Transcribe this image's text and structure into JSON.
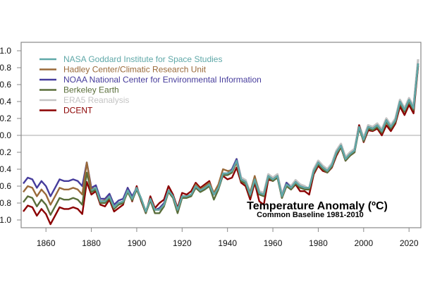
{
  "chart_data": {
    "type": "line",
    "title": "Temperature Anomaly (ºC)",
    "subtitle": "Common Baseline 1981-2010",
    "xlabel": "",
    "ylabel": "",
    "xlim": [
      1850,
      2025
    ],
    "ylim": [
      -1.1,
      1.1
    ],
    "x_step": 2,
    "xticks": [
      1860,
      1880,
      1900,
      1920,
      1940,
      1960,
      1980,
      2000,
      2020
    ],
    "yticks": [
      1.0,
      0.8,
      0.6,
      0.4,
      0.2,
      0.0,
      -0.2,
      -0.4,
      -0.6,
      -0.8,
      -1.0
    ],
    "ytick_labels": [
      "1.0",
      "0.8",
      "0.6",
      "0.4",
      "0.2",
      "0.0",
      "-0.2",
      "-0.4",
      "-0.6",
      "-0.8",
      "-1.0"
    ],
    "reference_line": 0.0,
    "grid": false,
    "legend_position": "top-left",
    "series": [
      {
        "name": "ERA5 Reanalysis",
        "color": "#c4c4c4",
        "x_start": 1940,
        "values": [
          -0.43,
          -0.4,
          -0.28,
          -0.5,
          -0.53,
          -0.68,
          -0.5,
          -0.66,
          -0.68,
          -0.46,
          -0.5,
          -0.46,
          -0.7,
          -0.56,
          -0.6,
          -0.53,
          -0.58,
          -0.6,
          -0.64,
          -0.4,
          -0.3,
          -0.36,
          -0.4,
          -0.33,
          -0.18,
          -0.1,
          -0.26,
          -0.2,
          -0.16,
          0.12,
          -0.03,
          0.12,
          0.1,
          0.14,
          0.07,
          0.2,
          0.12,
          0.2,
          0.42,
          0.32,
          0.44,
          0.34,
          0.9
        ]
      },
      {
        "name": "DCENT",
        "color": "#8b0000",
        "x_start": 1850,
        "values": [
          -0.9,
          -0.83,
          -0.85,
          -0.95,
          -0.87,
          -0.93,
          -1.05,
          -0.95,
          -0.85,
          -0.87,
          -0.87,
          -0.85,
          -0.87,
          -0.93,
          -0.55,
          -0.7,
          -0.66,
          -0.82,
          -0.84,
          -0.76,
          -0.9,
          -0.86,
          -0.82,
          -0.62,
          -0.78,
          -0.6,
          -0.78,
          -0.92,
          -0.72,
          -0.86,
          -0.8,
          -0.76,
          -0.6,
          -0.7,
          -0.86,
          -0.68,
          -0.7,
          -0.66,
          -0.56,
          -0.62,
          -0.58,
          -0.54,
          -0.7,
          -0.6,
          -0.48,
          -0.52,
          -0.5,
          -0.38,
          -0.56,
          -0.6,
          -0.76,
          -0.56,
          -0.78,
          -0.82,
          -0.52,
          -0.54,
          -0.48,
          -0.74,
          -0.6,
          -0.64,
          -0.58,
          -0.66,
          -0.66,
          -0.7,
          -0.46,
          -0.36,
          -0.42,
          -0.44,
          -0.38,
          -0.24,
          -0.14,
          -0.3,
          -0.24,
          -0.2,
          0.12,
          -0.08,
          0.06,
          0.05,
          0.08,
          0.0,
          0.12,
          0.05,
          0.14,
          0.34,
          0.24,
          0.36,
          0.26,
          0.82
        ]
      },
      {
        "name": "Berkeley Earth",
        "color": "#5a6e3a",
        "x_start": 1850,
        "values": [
          -0.79,
          -0.72,
          -0.74,
          -0.84,
          -0.76,
          -0.82,
          -0.94,
          -0.84,
          -0.74,
          -0.76,
          -0.76,
          -0.74,
          -0.76,
          -0.82,
          -0.44,
          -0.67,
          -0.64,
          -0.8,
          -0.8,
          -0.74,
          -0.87,
          -0.82,
          -0.8,
          -0.67,
          -0.77,
          -0.64,
          -0.77,
          -0.92,
          -0.77,
          -0.92,
          -0.92,
          -0.84,
          -0.67,
          -0.74,
          -0.92,
          -0.74,
          -0.74,
          -0.72,
          -0.62,
          -0.67,
          -0.64,
          -0.6,
          -0.76,
          -0.64,
          -0.47,
          -0.47,
          -0.44,
          -0.32,
          -0.54,
          -0.57,
          -0.72,
          -0.54,
          -0.7,
          -0.72,
          -0.5,
          -0.54,
          -0.5,
          -0.74,
          -0.6,
          -0.64,
          -0.57,
          -0.62,
          -0.64,
          -0.64,
          -0.44,
          -0.34,
          -0.4,
          -0.44,
          -0.37,
          -0.22,
          -0.14,
          -0.3,
          -0.24,
          -0.2,
          0.08,
          -0.07,
          0.08,
          0.06,
          0.1,
          0.03,
          0.16,
          0.08,
          0.16,
          0.38,
          0.28,
          0.4,
          0.3,
          0.83
        ]
      },
      {
        "name": "NOAA National Center for Environmental Information",
        "color": "#463c9c",
        "x_start": 1850,
        "values": [
          -0.57,
          -0.5,
          -0.52,
          -0.62,
          -0.54,
          -0.6,
          -0.72,
          -0.62,
          -0.52,
          -0.54,
          -0.54,
          -0.52,
          -0.54,
          -0.6,
          -0.32,
          -0.62,
          -0.59,
          -0.75,
          -0.75,
          -0.69,
          -0.82,
          -0.77,
          -0.75,
          -0.62,
          -0.72,
          -0.62,
          -0.75,
          -0.9,
          -0.75,
          -0.88,
          -0.86,
          -0.8,
          -0.65,
          -0.72,
          -0.88,
          -0.72,
          -0.72,
          -0.7,
          -0.6,
          -0.65,
          -0.62,
          -0.58,
          -0.7,
          -0.62,
          -0.45,
          -0.45,
          -0.4,
          -0.28,
          -0.52,
          -0.55,
          -0.7,
          -0.52,
          -0.68,
          -0.7,
          -0.48,
          -0.52,
          -0.48,
          -0.72,
          -0.56,
          -0.62,
          -0.55,
          -0.6,
          -0.62,
          -0.62,
          -0.42,
          -0.32,
          -0.38,
          -0.42,
          -0.35,
          -0.2,
          -0.12,
          -0.28,
          -0.22,
          -0.18,
          0.1,
          -0.05,
          0.1,
          0.08,
          0.12,
          0.05,
          0.18,
          0.1,
          0.18,
          0.4,
          0.3,
          0.42,
          0.32,
          0.85
        ]
      },
      {
        "name": "Hadley Center/Climatic Research Unit",
        "color": "#9a6a3a",
        "x_start": 1850,
        "values": [
          -0.67,
          -0.6,
          -0.62,
          -0.72,
          -0.64,
          -0.7,
          -0.82,
          -0.72,
          -0.62,
          -0.64,
          -0.64,
          -0.62,
          -0.64,
          -0.7,
          -0.32,
          -0.64,
          -0.62,
          -0.78,
          -0.77,
          -0.72,
          -0.85,
          -0.8,
          -0.78,
          -0.65,
          -0.75,
          -0.62,
          -0.75,
          -0.9,
          -0.75,
          -0.88,
          -0.88,
          -0.82,
          -0.65,
          -0.72,
          -0.88,
          -0.72,
          -0.72,
          -0.7,
          -0.58,
          -0.64,
          -0.6,
          -0.56,
          -0.68,
          -0.58,
          -0.4,
          -0.42,
          -0.42,
          -0.32,
          -0.52,
          -0.55,
          -0.68,
          -0.48,
          -0.68,
          -0.7,
          -0.48,
          -0.52,
          -0.48,
          -0.72,
          -0.58,
          -0.62,
          -0.55,
          -0.6,
          -0.62,
          -0.62,
          -0.42,
          -0.32,
          -0.38,
          -0.42,
          -0.35,
          -0.2,
          -0.12,
          -0.28,
          -0.22,
          -0.18,
          0.1,
          -0.05,
          0.1,
          0.08,
          0.12,
          0.05,
          0.18,
          0.1,
          0.18,
          0.4,
          0.3,
          0.42,
          0.32,
          0.85
        ]
      },
      {
        "name": "NASA Goddard Institute for Space Studies",
        "color": "#5fa8a8",
        "x_start": 1880,
        "values": [
          -0.65,
          -0.62,
          -0.78,
          -0.78,
          -0.72,
          -0.85,
          -0.8,
          -0.78,
          -0.65,
          -0.75,
          -0.62,
          -0.75,
          -0.9,
          -0.75,
          -0.88,
          -0.88,
          -0.82,
          -0.65,
          -0.72,
          -0.88,
          -0.72,
          -0.72,
          -0.7,
          -0.6,
          -0.65,
          -0.62,
          -0.58,
          -0.7,
          -0.62,
          -0.45,
          -0.45,
          -0.42,
          -0.3,
          -0.52,
          -0.55,
          -0.7,
          -0.52,
          -0.68,
          -0.7,
          -0.48,
          -0.52,
          -0.48,
          -0.72,
          -0.58,
          -0.62,
          -0.55,
          -0.6,
          -0.62,
          -0.62,
          -0.42,
          -0.32,
          -0.38,
          -0.42,
          -0.35,
          -0.2,
          -0.12,
          -0.28,
          -0.22,
          -0.18,
          0.1,
          -0.05,
          0.1,
          0.08,
          0.12,
          0.05,
          0.18,
          0.1,
          0.18,
          0.4,
          0.3,
          0.42,
          0.32,
          0.85
        ]
      }
    ],
    "legend_order": [
      "NASA Goddard Institute for Space Studies",
      "Hadley Center/Climatic Research Unit",
      "NOAA National Center for Environmental Information",
      "Berkeley Earth",
      "ERA5 Reanalysis",
      "DCENT"
    ]
  }
}
